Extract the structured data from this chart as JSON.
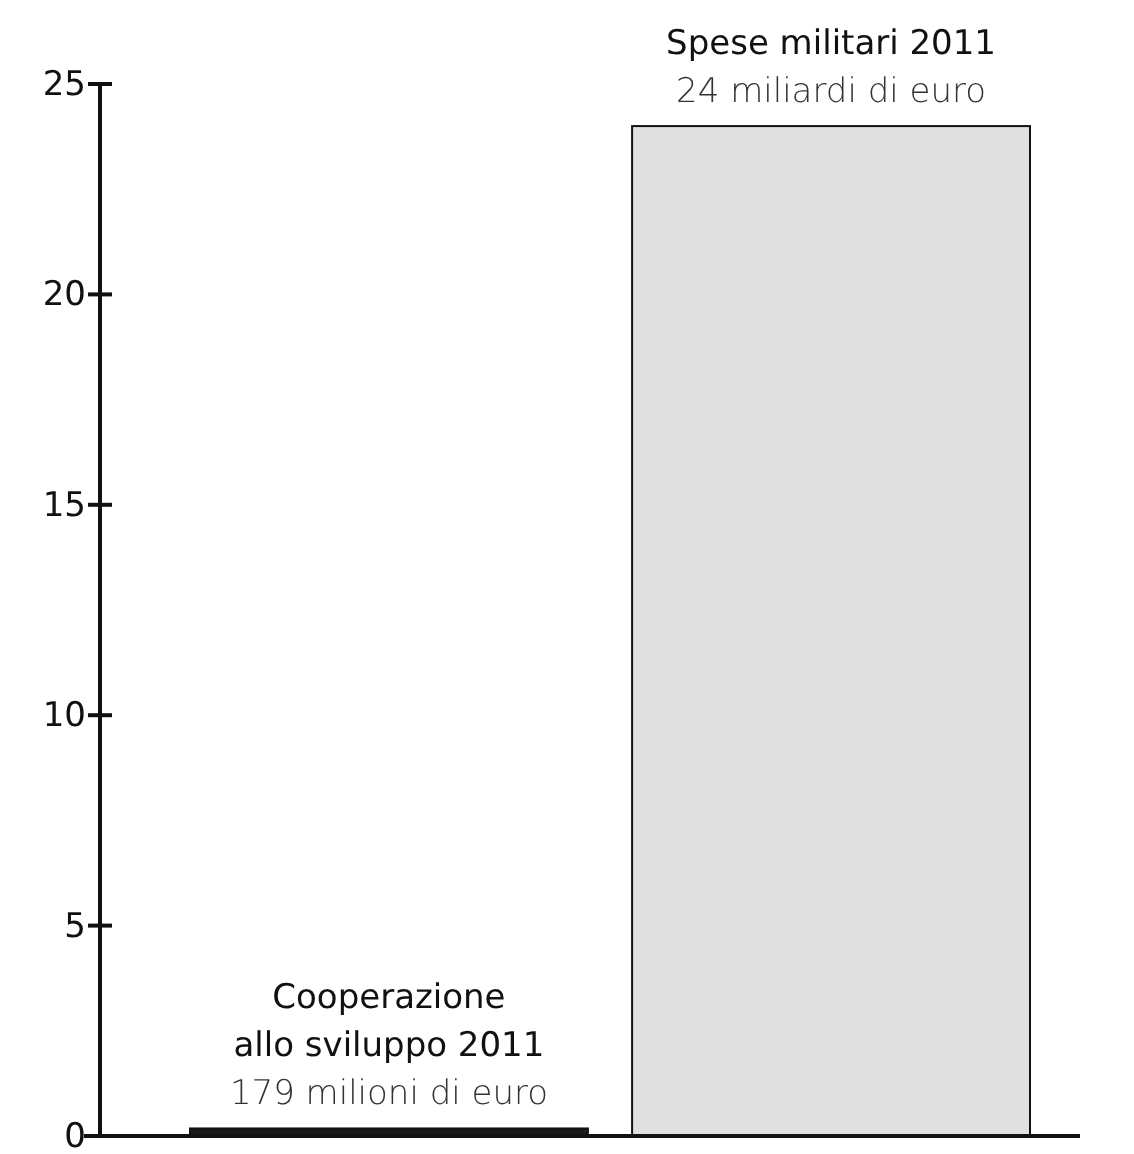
{
  "chart_data": {
    "type": "bar",
    "categories": [
      "Cooperazione allo sviluppo 2011",
      "Spese militari 2011"
    ],
    "values": [
      0.179,
      24
    ],
    "colors": [
      "#1a1a1a",
      "#e0e0e0"
    ],
    "annotations": [
      {
        "text": "179 milioni di euro",
        "x": "Cooperazione allo sviluppo 2011",
        "y": 0.179
      },
      {
        "text": "24 miliardi di euro",
        "x": "Spese militari 2011",
        "y": 24
      }
    ],
    "ylim": [
      0,
      25
    ],
    "yticks": [
      0,
      5,
      10,
      15,
      20,
      25
    ],
    "grid": false,
    "tick_labels": "y"
  }
}
